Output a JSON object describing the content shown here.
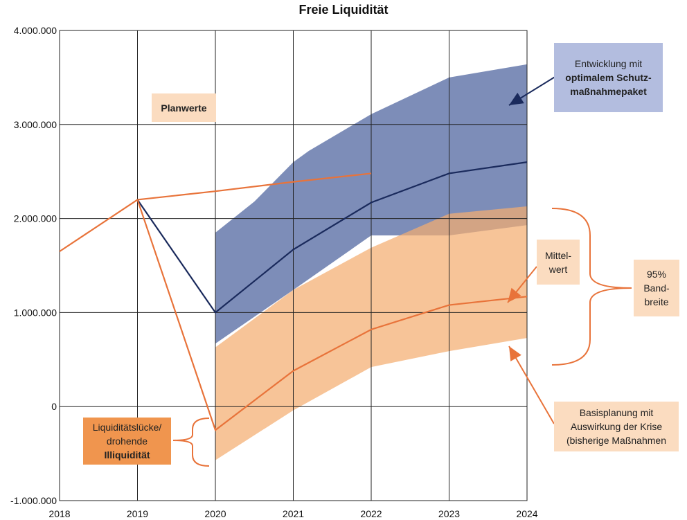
{
  "chart_data": {
    "type": "line",
    "title": "Freie Liquidität",
    "x": [
      2018,
      2019,
      2020,
      2021,
      2022,
      2023,
      2024
    ],
    "xlim": [
      2018,
      2024
    ],
    "ylim": [
      -1000000,
      4000000
    ],
    "y_ticks": [
      "4.000.000",
      "3.000.000",
      "2.000.000",
      "1.000.000",
      "0",
      "-1.000.000"
    ],
    "y_tick_values": [
      4000000,
      3000000,
      2000000,
      1000000,
      0,
      -1000000
    ],
    "x_ticks": [
      "2018",
      "2019",
      "2020",
      "2021",
      "2022",
      "2023",
      "2024"
    ],
    "grid": true,
    "series": [
      {
        "name": "Planwerte",
        "color": "#e8733a",
        "points": [
          [
            2018,
            1650000
          ],
          [
            2019,
            2200000
          ],
          [
            2020,
            2290000
          ],
          [
            2021,
            2390000
          ],
          [
            2022,
            2480000
          ]
        ]
      },
      {
        "name": "Entwicklung mit optimalem Schutz-maßnahmepaket",
        "color": "#1a2a5c",
        "points": [
          [
            2019,
            2200000
          ],
          [
            2020,
            1000000
          ],
          [
            2021,
            1670000
          ],
          [
            2022,
            2170000
          ],
          [
            2023,
            2480000
          ],
          [
            2024,
            2600000
          ]
        ]
      },
      {
        "name": "Mittelwert",
        "color": "#e8733a",
        "points": [
          [
            2019,
            2200000
          ],
          [
            2020,
            -250000
          ],
          [
            2021,
            380000
          ],
          [
            2022,
            820000
          ],
          [
            2023,
            1080000
          ],
          [
            2024,
            1170000
          ]
        ]
      }
    ],
    "bands": [
      {
        "name": "Entwicklung mit optimalem Schutz-maßnahmepaket",
        "color": "#7d8db8",
        "upper": [
          [
            2020,
            1850000
          ],
          [
            2020.5,
            2180000
          ],
          [
            2021,
            2600000
          ],
          [
            2021.2,
            2720000
          ],
          [
            2022,
            3110000
          ],
          [
            2023,
            3500000
          ],
          [
            2024,
            3640000
          ]
        ],
        "lower": [
          [
            2020,
            670000
          ],
          [
            2021,
            1240000
          ],
          [
            2022,
            1820000
          ],
          [
            2023,
            1820000
          ],
          [
            2024,
            1930000
          ]
        ]
      },
      {
        "name": "95% Band-breite",
        "color": "#f4ad70",
        "opacity": 0.72,
        "upper": [
          [
            2020,
            630000
          ],
          [
            2021,
            1240000
          ],
          [
            2022,
            1690000
          ],
          [
            2023,
            2050000
          ],
          [
            2024,
            2130000
          ]
        ],
        "lower": [
          [
            2020,
            -570000
          ],
          [
            2021,
            -40000
          ],
          [
            2022,
            420000
          ],
          [
            2023,
            590000
          ],
          [
            2024,
            730000
          ]
        ]
      }
    ]
  },
  "annotations": {
    "planwerte": "Planwerte",
    "optimal_line1": "Entwicklung mit",
    "optimal_line2": "optimalem Schutz-",
    "optimal_line3": "maßnahmepaket",
    "mittelwert_line1": "Mittel-",
    "mittelwert_line2": "wert",
    "band_line1": "95%",
    "band_line2": "Band-",
    "band_line3": "breite",
    "basis_line1": "Basisplanung mit",
    "basis_line2": "Auswirkung der Krise",
    "basis_line3": "(bisherige Maßnahmen",
    "luecke_line1": "Liquiditätslücke/",
    "luecke_line2": "drohende",
    "luecke_line3": "Illiquidität"
  },
  "colors": {
    "navy": "#1a2a5c",
    "orange": "#e8733a",
    "box_peach": "#fbdcc0",
    "box_lavender": "#b3bddf",
    "box_orange": "#f0954e"
  }
}
